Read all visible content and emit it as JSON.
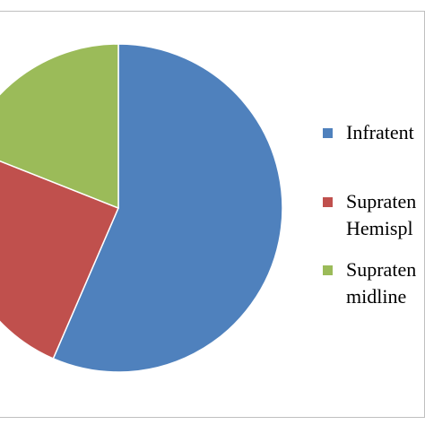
{
  "chart_data": {
    "type": "pie",
    "title": "",
    "start_angle_deg": 90,
    "direction": "clockwise",
    "slices": [
      {
        "label": "Infratentorial",
        "value": 56.5,
        "color": "#4F81BD"
      },
      {
        "label": "Supratentorial Hemispheric",
        "value": 24.5,
        "color": "#C0504D"
      },
      {
        "label": "Supratentorial midline",
        "value": 19.0,
        "color": "#9BBB59"
      }
    ],
    "legend": {
      "placement": "right",
      "entries": [
        {
          "lines": [
            "Infratent"
          ],
          "color": "#4F81BD"
        },
        {
          "lines": [
            "Supraten",
            "Hemispl"
          ],
          "color": "#C0504D"
        },
        {
          "lines": [
            "Supraten",
            "midline"
          ],
          "color": "#9BBB59"
        }
      ]
    }
  }
}
